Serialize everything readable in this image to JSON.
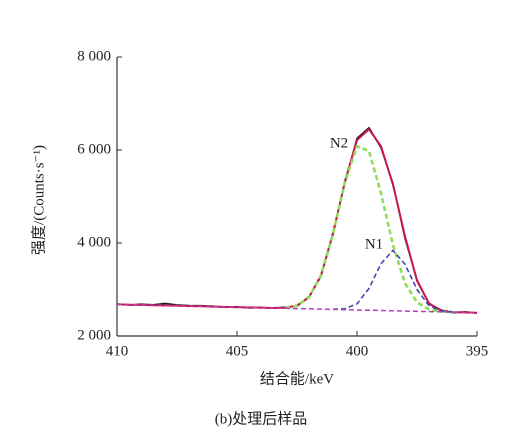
{
  "chart_data": {
    "type": "line",
    "caption": "(b)处理后样品",
    "x_label": "结合能/keV",
    "y_label": "强度/(Counts·s⁻¹)",
    "x": [
      410,
      409.5,
      409,
      408.5,
      408,
      407.5,
      407,
      406.5,
      406,
      405.5,
      405,
      404.5,
      404,
      403.5,
      403,
      402.5,
      402,
      401.5,
      401,
      400.5,
      400,
      399.5,
      399,
      398.5,
      398,
      397.5,
      397,
      396.5,
      396,
      395.5,
      395
    ],
    "series": [
      {
        "color": "#222222",
        "style": "solid",
        "values": [
          2690,
          2665,
          2683,
          2671,
          2702,
          2668,
          2655,
          2651,
          2640,
          2618,
          2631,
          2605,
          2615,
          2598,
          2620,
          2641,
          2850,
          3280,
          4230,
          5300,
          6250,
          6480,
          6050,
          5280,
          4100,
          3210,
          2690,
          2560,
          2500,
          2520,
          2490
        ]
      },
      {
        "color": "#c8174a",
        "style": "solid",
        "values": [
          2680,
          2674,
          2668,
          2662,
          2656,
          2650,
          2644,
          2638,
          2632,
          2626,
          2620,
          2614,
          2608,
          2602,
          2608,
          2653,
          2831,
          3305,
          4195,
          5333,
          6211,
          6448,
          6080,
          5254,
          4141,
          3191,
          2701,
          2549,
          2514,
          2506,
          2500
        ]
      },
      {
        "name": "N2",
        "color": "#8fdc5a",
        "style": "dashed",
        "values": [
          null,
          null,
          null,
          null,
          null,
          null,
          null,
          null,
          null,
          null,
          null,
          null,
          null,
          null,
          2608,
          2653,
          2831,
          3305,
          4193,
          5311,
          6081,
          5979,
          5073,
          3954,
          3134,
          2722,
          2571,
          2527,
          2512,
          null,
          null
        ]
      },
      {
        "name": "N1",
        "color": "#3a3aa8",
        "style": "dashed",
        "values": [
          null,
          null,
          null,
          null,
          null,
          null,
          null,
          null,
          null,
          null,
          null,
          null,
          null,
          null,
          null,
          null,
          null,
          null,
          2574,
          2588,
          2690,
          3023,
          3555,
          3842,
          3543,
          2999,
          2654,
          2540,
          2514,
          null,
          null
        ]
      },
      {
        "color": "#b040c0",
        "style": "dashed",
        "values": [
          2680,
          2674,
          2668,
          2662,
          2656,
          2650,
          2644,
          2638,
          2632,
          2626,
          2620,
          2614,
          2608,
          2602,
          2596,
          2590,
          2584,
          2578,
          2572,
          2566,
          2560,
          2554,
          2548,
          2542,
          2536,
          2530,
          2524,
          2518,
          2512,
          2506,
          2500
        ]
      }
    ],
    "xlim": [
      410,
      395
    ],
    "xticks": [
      410,
      405,
      400,
      395
    ],
    "ylim": [
      2000,
      8000
    ],
    "yticks": [
      {
        "value": 2000,
        "label": "2 000"
      },
      {
        "value": 4000,
        "label": "4 000"
      },
      {
        "value": 6000,
        "label": "6 000"
      },
      {
        "value": 8000,
        "label": "8 000"
      }
    ],
    "grid": false
  }
}
